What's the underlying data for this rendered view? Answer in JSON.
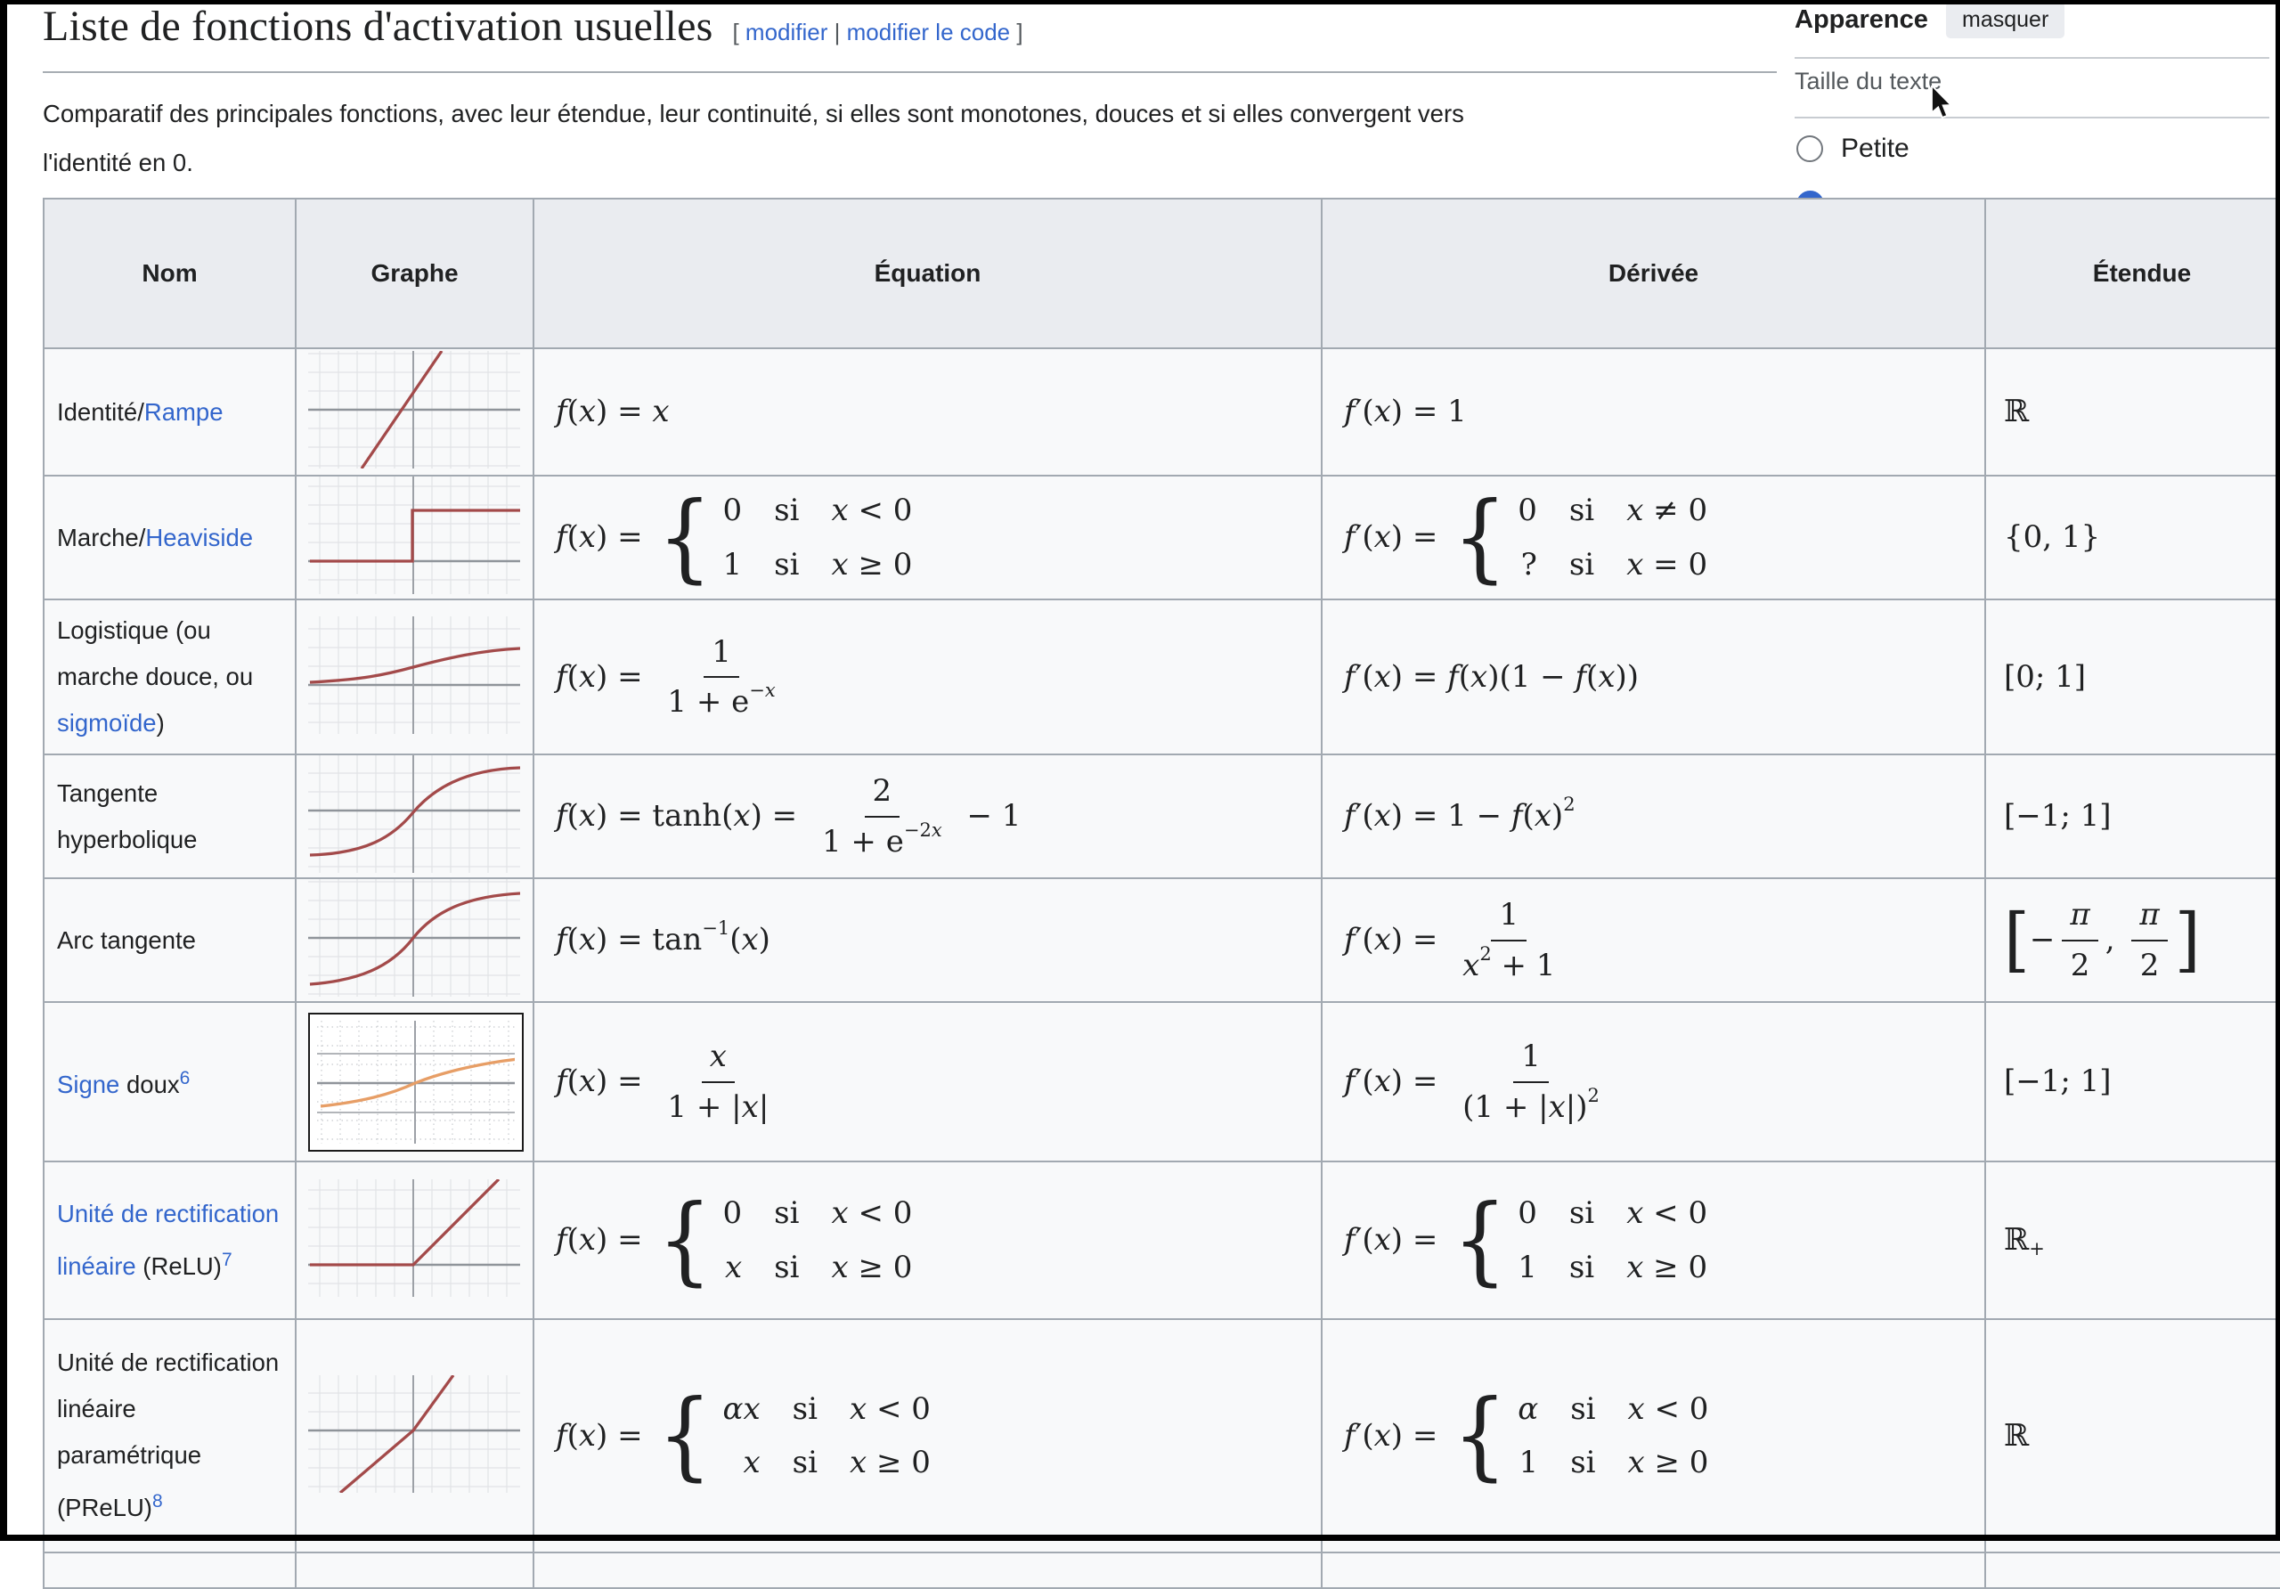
{
  "page": {
    "title": "Liste de fonctions d'activation usuelles",
    "edit_bracket_open": "[ ",
    "edit_link_1": "modifier",
    "edit_separator": " | ",
    "edit_link_2": "modifier le code",
    "edit_bracket_close": " ]",
    "intro_line1": "Comparatif des principales fonctions, avec leur étendue, leur continuité, si elles sont monotones, douces et si elles convergent vers",
    "intro_line2": "l'identité en 0."
  },
  "appearance_panel": {
    "title": "Apparence",
    "hide_button": "masquer",
    "text_size_label": "Taille du texte",
    "radio_small": {
      "label": "Petite",
      "selected": false
    },
    "partial_selected_radio": {
      "selected": true,
      "color": "#3366cc"
    }
  },
  "colors": {
    "link": "#3366cc",
    "curve_red": "#a34a4a",
    "curve_orange": "#e79e66",
    "table_border": "#a2a9b1",
    "header_bg": "#eaecf0",
    "cell_bg": "#f8f9fa"
  },
  "table": {
    "headers": [
      "Nom",
      "Graphe",
      "Équation",
      "Dérivée",
      "Étendue"
    ],
    "rows": [
      {
        "graph": "identity",
        "name": [
          [
            "t",
            "Identité/"
          ],
          [
            "l",
            "Rampe"
          ]
        ],
        "equation": [
          [
            "i",
            "f"
          ],
          [
            "r",
            "("
          ],
          [
            "i",
            "x"
          ],
          [
            "r",
            ") = "
          ],
          [
            "i",
            "x"
          ]
        ],
        "derivative": [
          [
            "i",
            "f"
          ],
          [
            "r",
            "′("
          ],
          [
            "i",
            "x"
          ],
          [
            "r",
            ") = 1"
          ]
        ],
        "range": [
          [
            "bb",
            "ℝ"
          ]
        ]
      },
      {
        "graph": "step",
        "name": [
          [
            "t",
            "Marche/"
          ],
          [
            "l",
            "Heaviside"
          ]
        ],
        "equation": [
          [
            "i",
            "f"
          ],
          [
            "r",
            "("
          ],
          [
            "i",
            "x"
          ],
          [
            "r",
            ") = "
          ],
          [
            "cases",
            [
              [
                [
                  [
                    "r",
                    "0"
                  ]
                ],
                [
                  [
                    "r",
                    "si"
                  ]
                ],
                [
                  [
                    "i",
                    "x"
                  ],
                  [
                    "r",
                    " < 0"
                  ]
                ]
              ],
              [
                [
                  [
                    "r",
                    "1"
                  ]
                ],
                [
                  [
                    "r",
                    "si"
                  ]
                ],
                [
                  [
                    "i",
                    "x"
                  ],
                  [
                    "r",
                    " ≥ 0"
                  ]
                ]
              ]
            ]
          ]
        ],
        "derivative": [
          [
            "i",
            "f"
          ],
          [
            "r",
            "′("
          ],
          [
            "i",
            "x"
          ],
          [
            "r",
            ") = "
          ],
          [
            "cases",
            [
              [
                [
                  [
                    "r",
                    "0"
                  ]
                ],
                [
                  [
                    "r",
                    "si"
                  ]
                ],
                [
                  [
                    "i",
                    "x"
                  ],
                  [
                    "r",
                    " ≠ 0"
                  ]
                ]
              ],
              [
                [
                  [
                    "r",
                    "?"
                  ]
                ],
                [
                  [
                    "r",
                    "si"
                  ]
                ],
                [
                  [
                    "i",
                    "x"
                  ],
                  [
                    "r",
                    " = 0"
                  ]
                ]
              ]
            ]
          ]
        ],
        "range": [
          [
            "r",
            "{0, 1}"
          ]
        ]
      },
      {
        "graph": "logistic",
        "name": [
          [
            "t",
            "Logistique (ou marche douce, ou "
          ],
          [
            "l",
            "sigmoïde"
          ],
          [
            "t",
            ")"
          ]
        ],
        "equation": [
          [
            "i",
            "f"
          ],
          [
            "r",
            "("
          ],
          [
            "i",
            "x"
          ],
          [
            "r",
            ") = "
          ],
          [
            "frac",
            [
              [
                "r",
                "1"
              ]
            ],
            [
              [
                "r",
                "1 + e"
              ],
              [
                "sup",
                [
                  [
                    "r",
                    "−"
                  ],
                  [
                    "i",
                    "x"
                  ]
                ]
              ]
            ]
          ]
        ],
        "derivative": [
          [
            "i",
            "f"
          ],
          [
            "r",
            "′("
          ],
          [
            "i",
            "x"
          ],
          [
            "r",
            ") = "
          ],
          [
            "i",
            "f"
          ],
          [
            "r",
            "("
          ],
          [
            "i",
            "x"
          ],
          [
            "r",
            ")(1 − "
          ],
          [
            "i",
            "f"
          ],
          [
            "r",
            "("
          ],
          [
            "i",
            "x"
          ],
          [
            "r",
            "))"
          ]
        ],
        "range": [
          [
            "r",
            "[0; 1]"
          ]
        ]
      },
      {
        "graph": "tanh",
        "name": [
          [
            "t",
            "Tangente hyperbolique"
          ]
        ],
        "equation": [
          [
            "i",
            "f"
          ],
          [
            "r",
            "("
          ],
          [
            "i",
            "x"
          ],
          [
            "r",
            ") = tanh("
          ],
          [
            "i",
            "x"
          ],
          [
            "r",
            ") = "
          ],
          [
            "frac",
            [
              [
                "r",
                "2"
              ]
            ],
            [
              [
                "r",
                "1 + e"
              ],
              [
                "sup",
                [
                  [
                    "r",
                    "−2"
                  ],
                  [
                    "i",
                    "x"
                  ]
                ]
              ]
            ]
          ],
          [
            "r",
            " − 1"
          ]
        ],
        "derivative": [
          [
            "i",
            "f"
          ],
          [
            "r",
            "′("
          ],
          [
            "i",
            "x"
          ],
          [
            "r",
            ") = 1 − "
          ],
          [
            "i",
            "f"
          ],
          [
            "r",
            "("
          ],
          [
            "i",
            "x"
          ],
          [
            "r",
            ")"
          ],
          [
            "sup",
            [
              [
                "r",
                "2"
              ]
            ]
          ]
        ],
        "range": [
          [
            "r",
            "[−1; 1]"
          ]
        ]
      },
      {
        "graph": "arctan",
        "name": [
          [
            "t",
            "Arc tangente"
          ]
        ],
        "equation": [
          [
            "i",
            "f"
          ],
          [
            "r",
            "("
          ],
          [
            "i",
            "x"
          ],
          [
            "r",
            ") = tan"
          ],
          [
            "sup",
            [
              [
                "r",
                "−1"
              ]
            ]
          ],
          [
            "r",
            "("
          ],
          [
            "i",
            "x"
          ],
          [
            "r",
            ")"
          ]
        ],
        "derivative": [
          [
            "i",
            "f"
          ],
          [
            "r",
            "′("
          ],
          [
            "i",
            "x"
          ],
          [
            "r",
            ") = "
          ],
          [
            "frac",
            [
              [
                "r",
                "1"
              ]
            ],
            [
              [
                "i",
                "x"
              ],
              [
                "sup",
                [
                  [
                    "r",
                    "2"
                  ]
                ]
              ],
              [
                "r",
                " + 1"
              ]
            ]
          ]
        ],
        "range": [
          [
            "big",
            "["
          ],
          [
            "r",
            "−"
          ],
          [
            "frac",
            [
              [
                "i",
                "π"
              ]
            ],
            [
              [
                "r",
                "2"
              ]
            ]
          ],
          [
            "r",
            ", "
          ],
          [
            "frac",
            [
              [
                "i",
                "π"
              ]
            ],
            [
              [
                "r",
                "2"
              ]
            ]
          ],
          [
            "big",
            "]"
          ]
        ]
      },
      {
        "graph": "softsign",
        "name": [
          [
            "l",
            "Signe"
          ],
          [
            "t",
            " doux"
          ],
          [
            "sl",
            "6"
          ]
        ],
        "equation": [
          [
            "i",
            "f"
          ],
          [
            "r",
            "("
          ],
          [
            "i",
            "x"
          ],
          [
            "r",
            ") = "
          ],
          [
            "frac",
            [
              [
                "i",
                "x"
              ]
            ],
            [
              [
                "r",
                "1 + |"
              ],
              [
                "i",
                "x"
              ],
              [
                "r",
                "|"
              ]
            ]
          ]
        ],
        "derivative": [
          [
            "i",
            "f"
          ],
          [
            "r",
            "′("
          ],
          [
            "i",
            "x"
          ],
          [
            "r",
            ") = "
          ],
          [
            "frac",
            [
              [
                "r",
                "1"
              ]
            ],
            [
              [
                "r",
                "(1 + |"
              ],
              [
                "i",
                "x"
              ],
              [
                "r",
                "|)"
              ],
              [
                "sup",
                [
                  [
                    "r",
                    "2"
                  ]
                ]
              ]
            ]
          ]
        ],
        "range": [
          [
            "r",
            "[−1; 1]"
          ]
        ]
      },
      {
        "graph": "relu",
        "name": [
          [
            "l",
            "Unité de rectification linéaire"
          ],
          [
            "t",
            " (ReLU)"
          ],
          [
            "sl",
            "7"
          ]
        ],
        "equation": [
          [
            "i",
            "f"
          ],
          [
            "r",
            "("
          ],
          [
            "i",
            "x"
          ],
          [
            "r",
            ") = "
          ],
          [
            "cases",
            [
              [
                [
                  [
                    "r",
                    "0"
                  ]
                ],
                [
                  [
                    "r",
                    "si"
                  ]
                ],
                [
                  [
                    "i",
                    "x"
                  ],
                  [
                    "r",
                    " < 0"
                  ]
                ]
              ],
              [
                [
                  [
                    "i",
                    "x"
                  ]
                ],
                [
                  [
                    "r",
                    "si"
                  ]
                ],
                [
                  [
                    "i",
                    "x"
                  ],
                  [
                    "r",
                    " ≥ 0"
                  ]
                ]
              ]
            ]
          ]
        ],
        "derivative": [
          [
            "i",
            "f"
          ],
          [
            "r",
            "′("
          ],
          [
            "i",
            "x"
          ],
          [
            "r",
            ") = "
          ],
          [
            "cases",
            [
              [
                [
                  [
                    "r",
                    "0"
                  ]
                ],
                [
                  [
                    "r",
                    "si"
                  ]
                ],
                [
                  [
                    "i",
                    "x"
                  ],
                  [
                    "r",
                    " < 0"
                  ]
                ]
              ],
              [
                [
                  [
                    "r",
                    "1"
                  ]
                ],
                [
                  [
                    "r",
                    "si"
                  ]
                ],
                [
                  [
                    "i",
                    "x"
                  ],
                  [
                    "r",
                    " ≥ 0"
                  ]
                ]
              ]
            ]
          ]
        ],
        "range": [
          [
            "bb",
            "ℝ"
          ],
          [
            "sub",
            [
              [
                "r",
                "+"
              ]
            ]
          ]
        ]
      },
      {
        "graph": "prelu",
        "name": [
          [
            "t",
            "Unité de rectification linéaire paramétrique (PReLU)"
          ],
          [
            "sl",
            "8"
          ]
        ],
        "equation": [
          [
            "i",
            "f"
          ],
          [
            "r",
            "("
          ],
          [
            "i",
            "x"
          ],
          [
            "r",
            ") = "
          ],
          [
            "cases",
            [
              [
                [
                  [
                    "i",
                    "αx"
                  ]
                ],
                [
                  [
                    "r",
                    "si"
                  ]
                ],
                [
                  [
                    "i",
                    "x"
                  ],
                  [
                    "r",
                    " < 0"
                  ]
                ]
              ],
              [
                [
                  [
                    "i",
                    "x"
                  ]
                ],
                [
                  [
                    "r",
                    "si"
                  ]
                ],
                [
                  [
                    "i",
                    "x"
                  ],
                  [
                    "r",
                    " ≥ 0"
                  ]
                ]
              ]
            ]
          ]
        ],
        "derivative": [
          [
            "i",
            "f"
          ],
          [
            "r",
            "′("
          ],
          [
            "i",
            "x"
          ],
          [
            "r",
            ") = "
          ],
          [
            "cases",
            [
              [
                [
                  [
                    "i",
                    "α"
                  ]
                ],
                [
                  [
                    "r",
                    "si"
                  ]
                ],
                [
                  [
                    "i",
                    "x"
                  ],
                  [
                    "r",
                    " < 0"
                  ]
                ]
              ],
              [
                [
                  [
                    "r",
                    "1"
                  ]
                ],
                [
                  [
                    "r",
                    "si"
                  ]
                ],
                [
                  [
                    "i",
                    "x"
                  ],
                  [
                    "r",
                    " ≥ 0"
                  ]
                ]
              ]
            ]
          ]
        ],
        "range": [
          [
            "bb",
            "ℝ"
          ]
        ]
      }
    ]
  }
}
